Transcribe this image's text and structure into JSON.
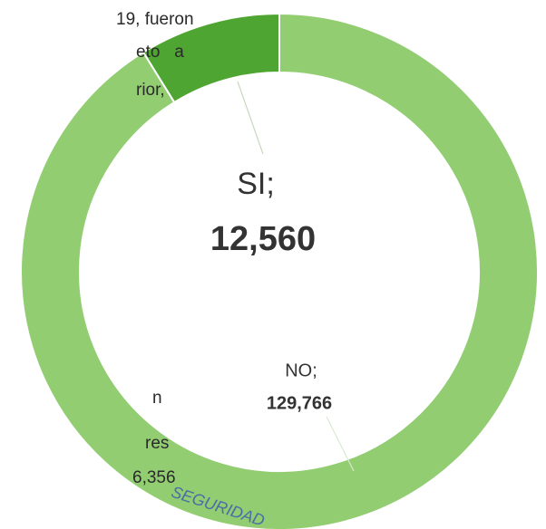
{
  "chart_data": {
    "type": "donut",
    "categories": [
      "SI;",
      "NO;"
    ],
    "values": [
      12560,
      129766
    ],
    "value_labels": [
      "12,560",
      "129,766"
    ],
    "colors": [
      "#4fa531",
      "#92cd72"
    ]
  },
  "text_fragments": [
    "19, fueron",
    "eto   a",
    "rior,",
    "n",
    "res",
    "6,356"
  ],
  "stamp": "SEGURIDAD"
}
